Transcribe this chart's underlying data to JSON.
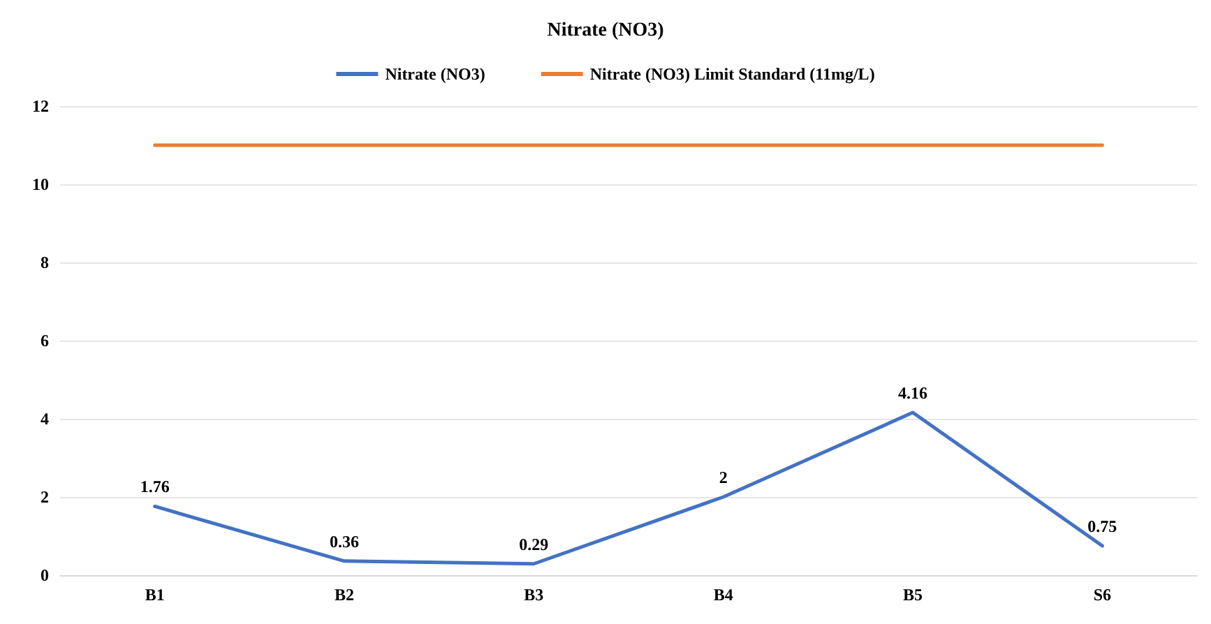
{
  "chart_data": {
    "type": "line",
    "title": "Nitrate (NO3)",
    "categories": [
      "B1",
      "B2",
      "B3",
      "B4",
      "B5",
      "S6"
    ],
    "series": [
      {
        "name": "Nitrate (NO3)",
        "color": "#4472c4",
        "values": [
          1.76,
          0.36,
          0.29,
          2,
          4.16,
          0.75
        ],
        "value_labels": [
          "1.76",
          "0.36",
          "0.29",
          "2",
          "4.16",
          "0.75"
        ]
      },
      {
        "name": "Nitrate (NO3) Limit Standard (11mg/L)",
        "color": "#ed7d31",
        "values": [
          11,
          11,
          11,
          11,
          11,
          11
        ]
      }
    ],
    "ylim": [
      0,
      12
    ],
    "yticks": [
      0,
      2,
      4,
      6,
      8,
      10,
      12
    ],
    "grid": "y",
    "legend": "top",
    "marker": "none",
    "line_style": "solid"
  }
}
